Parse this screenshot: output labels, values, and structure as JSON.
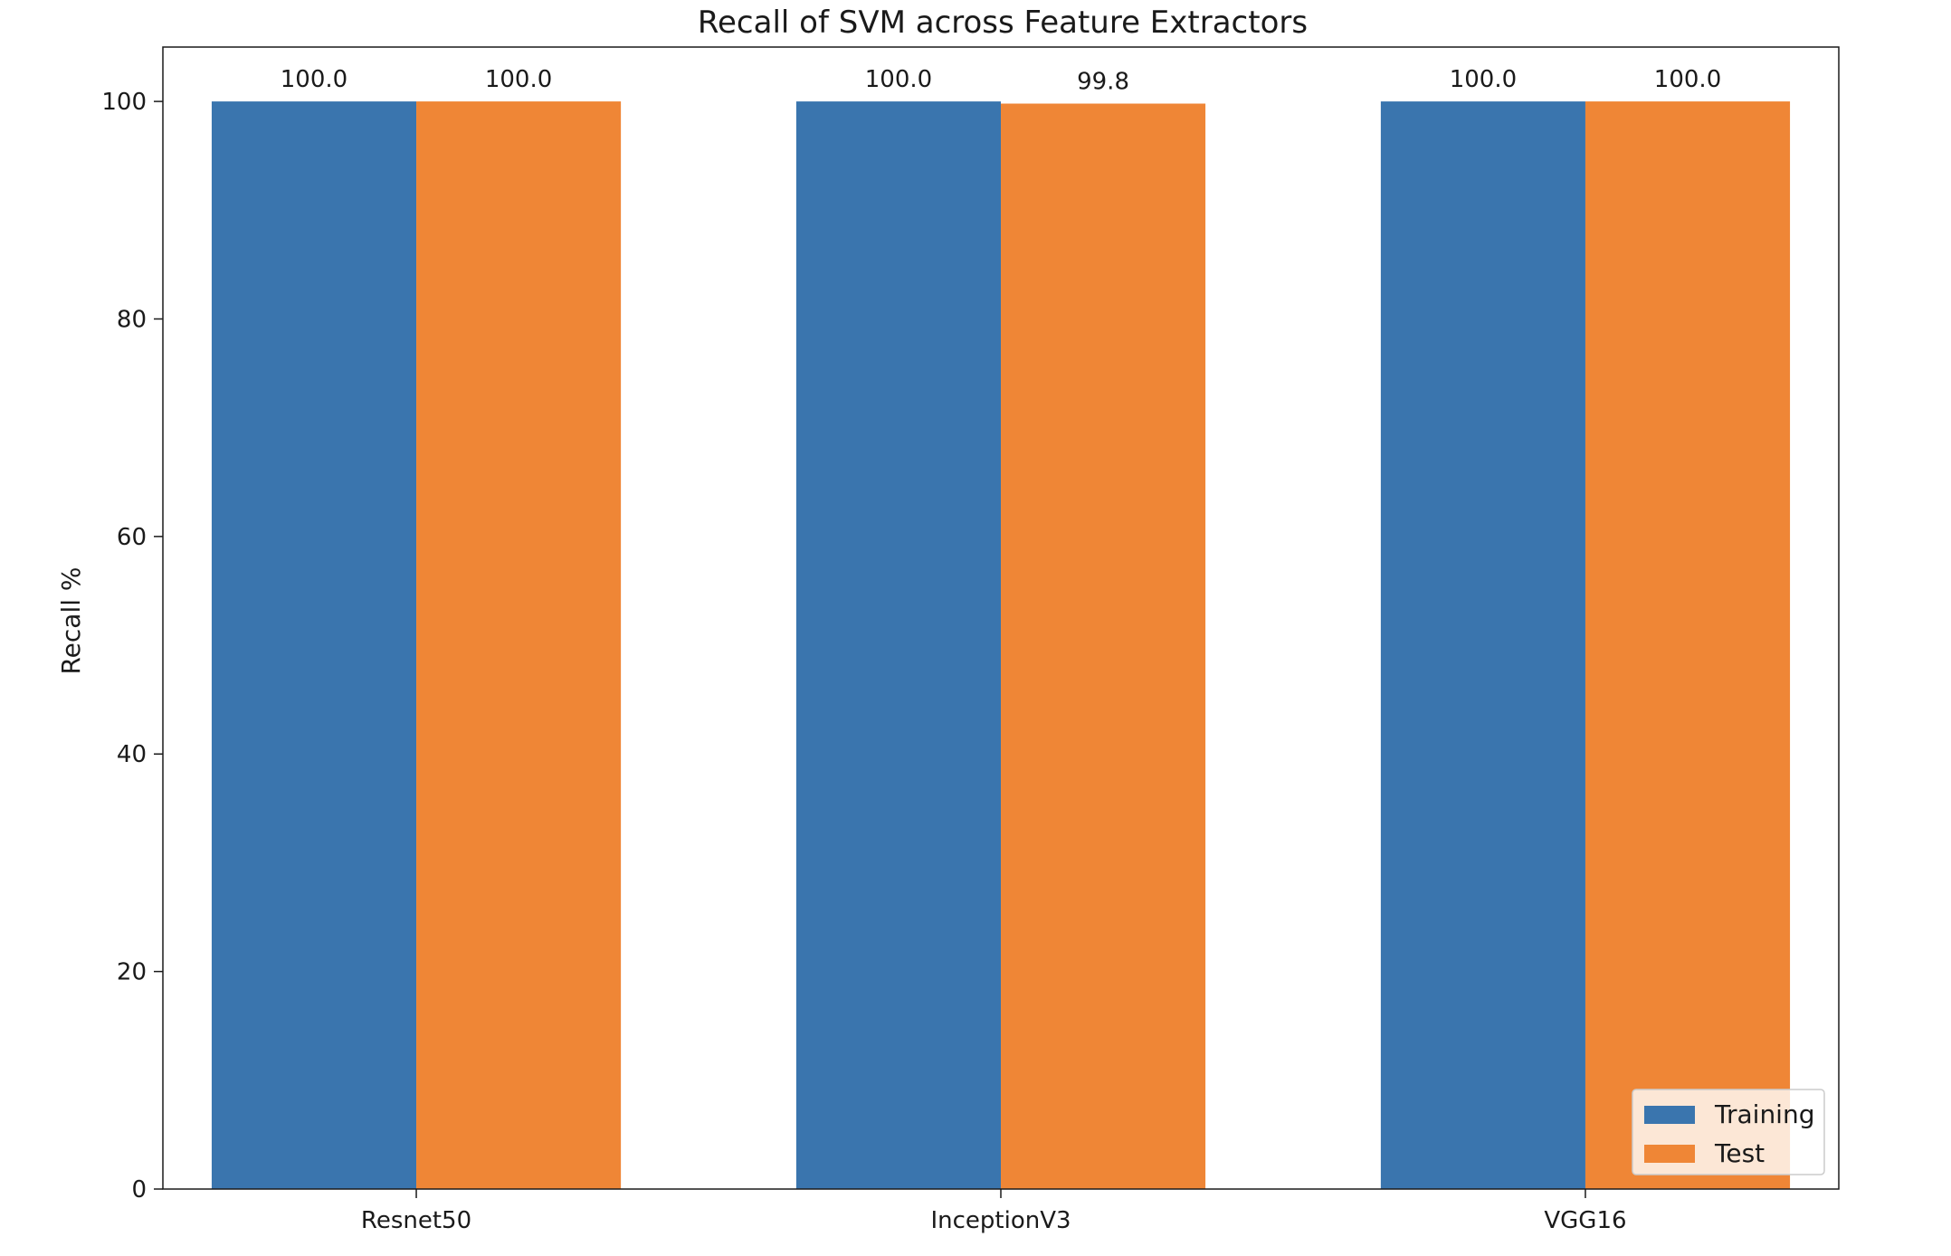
{
  "chart_data": {
    "type": "bar",
    "title": "Recall of SVM across Feature Extractors",
    "xlabel": "",
    "ylabel": "Recall %",
    "categories": [
      "Resnet50",
      "InceptionV3",
      "VGG16"
    ],
    "series": [
      {
        "name": "Training",
        "values": [
          100.0,
          100.0,
          100.0
        ],
        "labels": [
          "100.0",
          "100.0",
          "100.0"
        ],
        "color": "#3a75ae"
      },
      {
        "name": "Test",
        "values": [
          100.0,
          99.8,
          100.0
        ],
        "labels": [
          "100.0",
          "99.8",
          "100.0"
        ],
        "color": "#ef8636"
      }
    ],
    "ylim": [
      0,
      105
    ],
    "yticks": [
      0,
      20,
      40,
      60,
      80,
      100
    ],
    "ytick_labels": [
      "0",
      "20",
      "40",
      "60",
      "80",
      "100"
    ],
    "grid": false,
    "legend_position": "lower-right"
  }
}
